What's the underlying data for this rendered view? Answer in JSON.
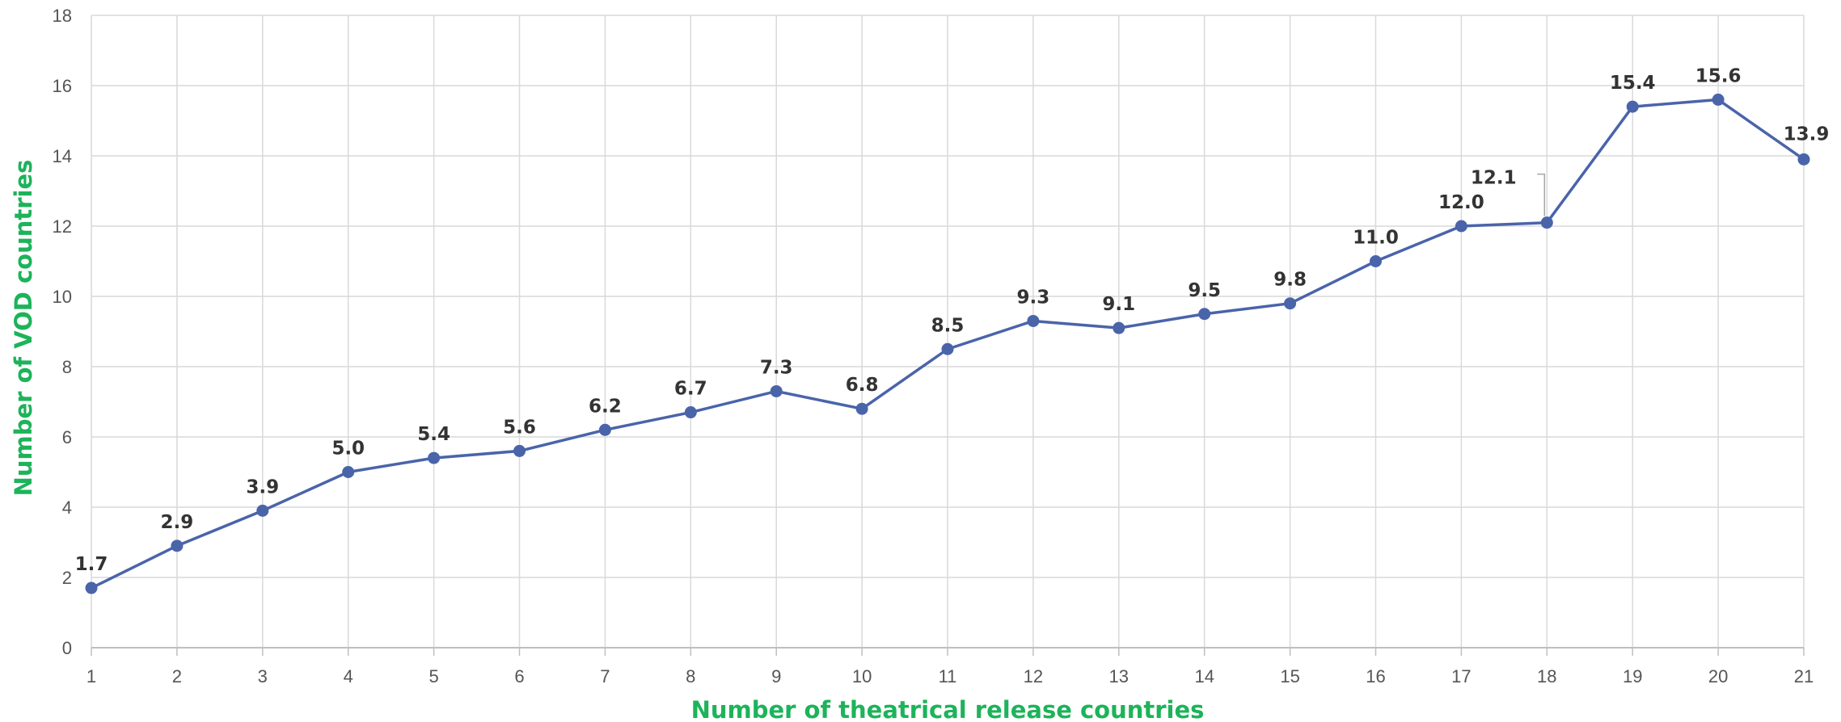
{
  "colors": {
    "line": "#4a64aa",
    "axis_title": "#1db35a",
    "grid": "#d9d9d9",
    "tick": "#555555",
    "data_label": "#333333"
  },
  "chart_data": {
    "type": "line",
    "xlabel": "Number of theatrical release countries",
    "ylabel": "Number of VOD countries",
    "xlim": [
      1,
      21
    ],
    "ylim": [
      0,
      18
    ],
    "grid": true,
    "x": [
      1,
      2,
      3,
      4,
      5,
      6,
      7,
      8,
      9,
      10,
      11,
      12,
      13,
      14,
      15,
      16,
      17,
      18,
      19,
      20,
      21
    ],
    "x_tick_labels": [
      "1",
      "2",
      "3",
      "4",
      "5",
      "6",
      "7",
      "8",
      "9",
      "10",
      "11",
      "12",
      "13",
      "14",
      "15",
      "16",
      "17",
      "18",
      "19",
      "20",
      "21"
    ],
    "y_ticks": [
      0,
      2,
      4,
      6,
      8,
      10,
      12,
      14,
      16,
      18
    ],
    "y_tick_labels": [
      "0",
      "2",
      "4",
      "6",
      "8",
      "10",
      "12",
      "14",
      "16",
      "18"
    ],
    "series": [
      {
        "values": [
          1.7,
          2.9,
          3.9,
          5.0,
          5.4,
          5.6,
          6.2,
          6.7,
          7.3,
          6.8,
          8.5,
          9.3,
          9.1,
          9.5,
          9.8,
          11.0,
          12.0,
          12.1,
          15.4,
          15.6,
          13.9
        ],
        "data_labels": [
          "1.7",
          "2.9",
          "3.9",
          "5.0",
          "5.4",
          "5.6",
          "6.2",
          "6.7",
          "7.3",
          "6.8",
          "8.5",
          "9.3",
          "9.1",
          "9.5",
          "9.8",
          "11.0",
          "12.0",
          "12.1",
          "15.4",
          "15.6",
          "13.9"
        ]
      }
    ]
  }
}
